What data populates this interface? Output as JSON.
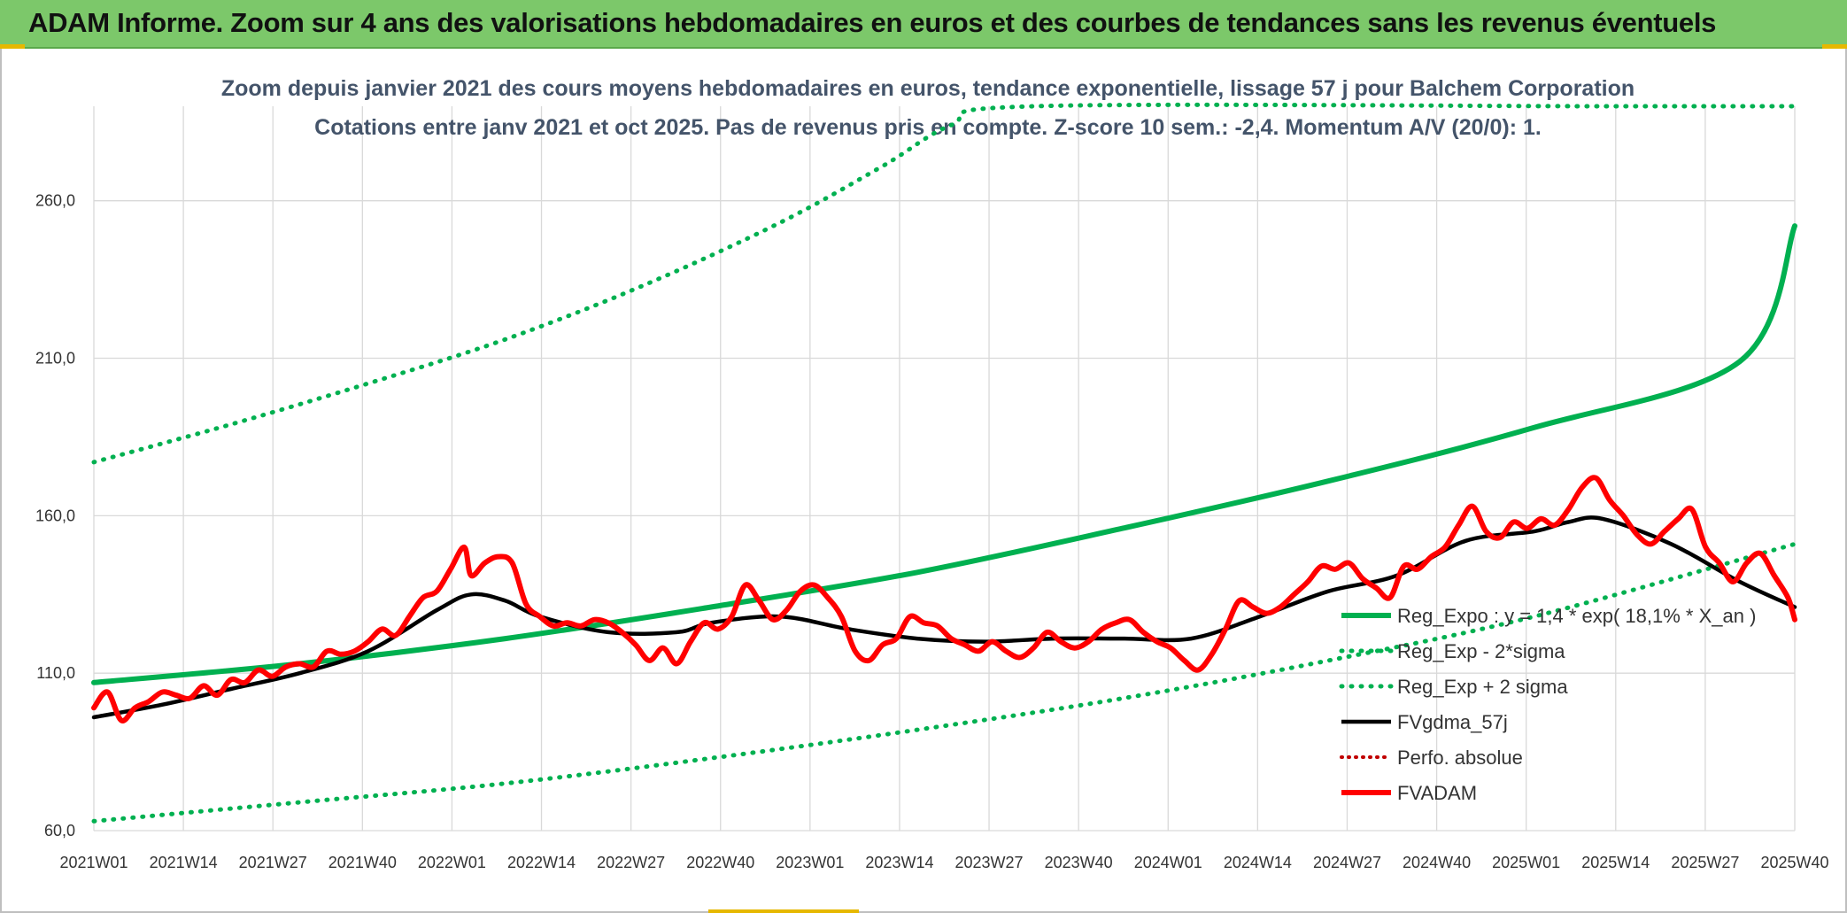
{
  "banner": {
    "title": "ADAM Informe. Zoom sur 4 ans des valorisations hebdomadaires en euros et des courbes de tendances sans les revenus éventuels"
  },
  "chart_data": {
    "type": "line",
    "title_line1": "Zoom depuis janvier 2021 des cours moyens hebdomadaires en euros, tendance exponentielle, lissage 57 j pour Balchem Corporation",
    "title_line2": "Cotations entre janv 2021 et oct 2025. Pas de revenus pris en compte. Z-score 10 sem.: -2,4. Momentum A/V (20/0): 1.",
    "ylim": [
      60,
      290
    ],
    "yticks": [
      60,
      110,
      160,
      210,
      260
    ],
    "ytick_labels": [
      "60,0",
      "110,0",
      "160,0",
      "210,0",
      "260,0"
    ],
    "n_weeks": 249,
    "xtick_labels": [
      "2021W01",
      "2021W14",
      "2021W27",
      "2021W40",
      "2022W01",
      "2022W14",
      "2022W27",
      "2022W40",
      "2023W01",
      "2023W14",
      "2023W27",
      "2023W40",
      "2024W01",
      "2024W14",
      "2024W27",
      "2024W40",
      "2025W01",
      "2025W14",
      "2025W27",
      "2025W40"
    ],
    "legend_position": "right",
    "colors": {
      "reg_expo": "#00b050",
      "band": "#00b050",
      "smooth": "#000000",
      "price": "#ff0000",
      "perfo": "#c00000",
      "grid": "#d9d9d9"
    },
    "series": [
      {
        "name": "Reg_Expo : y = 1,4 * exp( 18,1% * X_an )",
        "style": "solid-thick-green",
        "anchors": [
          [
            0,
            107
          ],
          [
            30,
            113
          ],
          [
            60,
            121
          ],
          [
            90,
            131
          ],
          [
            120,
            142
          ],
          [
            150,
            156
          ],
          [
            180,
            171
          ],
          [
            210,
            188
          ],
          [
            240,
            209
          ],
          [
            248,
            252
          ]
        ]
      },
      {
        "name": "Reg_Exp - 2*sigma",
        "style": "dotted-green",
        "anchors": [
          [
            0,
            63
          ],
          [
            30,
            69
          ],
          [
            60,
            75
          ],
          [
            90,
            83
          ],
          [
            120,
            92
          ],
          [
            150,
            102
          ],
          [
            180,
            114
          ],
          [
            210,
            128
          ],
          [
            248,
            151
          ]
        ]
      },
      {
        "name": "Reg_Exp + 2 sigma",
        "style": "dotted-green",
        "anchors": [
          [
            0,
            177
          ],
          [
            20,
            189
          ],
          [
            40,
            202
          ],
          [
            60,
            216
          ],
          [
            80,
            233
          ],
          [
            100,
            253
          ],
          [
            115,
            271
          ],
          [
            125,
            284
          ],
          [
            137,
            290
          ],
          [
            220,
            290
          ],
          [
            248,
            290
          ]
        ]
      },
      {
        "name": "FVgdma_57j",
        "style": "solid-black",
        "anchors": [
          [
            0,
            96
          ],
          [
            10,
            100
          ],
          [
            20,
            105
          ],
          [
            30,
            110
          ],
          [
            40,
            117
          ],
          [
            50,
            130
          ],
          [
            55,
            135
          ],
          [
            60,
            133
          ],
          [
            65,
            128
          ],
          [
            75,
            123
          ],
          [
            85,
            123
          ],
          [
            90,
            126
          ],
          [
            100,
            128
          ],
          [
            110,
            124
          ],
          [
            120,
            121
          ],
          [
            130,
            120
          ],
          [
            140,
            121
          ],
          [
            150,
            121
          ],
          [
            160,
            121
          ],
          [
            170,
            128
          ],
          [
            180,
            136
          ],
          [
            190,
            141
          ],
          [
            200,
            152
          ],
          [
            210,
            155
          ],
          [
            215,
            158
          ],
          [
            220,
            159
          ],
          [
            230,
            151
          ],
          [
            240,
            139
          ],
          [
            248,
            131
          ]
        ]
      },
      {
        "name": "Perfo. absolue",
        "style": "dotted-darkred",
        "anchors": []
      },
      {
        "name": "FVADAM",
        "style": "solid-thick-red",
        "anchors": [
          [
            0,
            99
          ],
          [
            2,
            104
          ],
          [
            4,
            95
          ],
          [
            6,
            99
          ],
          [
            8,
            101
          ],
          [
            10,
            104
          ],
          [
            12,
            103
          ],
          [
            14,
            102
          ],
          [
            16,
            106
          ],
          [
            18,
            103
          ],
          [
            20,
            108
          ],
          [
            22,
            107
          ],
          [
            24,
            111
          ],
          [
            26,
            109
          ],
          [
            28,
            112
          ],
          [
            30,
            113
          ],
          [
            32,
            112
          ],
          [
            34,
            117
          ],
          [
            36,
            116
          ],
          [
            38,
            117
          ],
          [
            40,
            120
          ],
          [
            42,
            124
          ],
          [
            44,
            122
          ],
          [
            46,
            128
          ],
          [
            48,
            134
          ],
          [
            50,
            136
          ],
          [
            52,
            143
          ],
          [
            54,
            150
          ],
          [
            55,
            141
          ],
          [
            57,
            145
          ],
          [
            59,
            147
          ],
          [
            61,
            145
          ],
          [
            63,
            132
          ],
          [
            65,
            128
          ],
          [
            67,
            125
          ],
          [
            69,
            126
          ],
          [
            71,
            125
          ],
          [
            73,
            127
          ],
          [
            75,
            126
          ],
          [
            77,
            123
          ],
          [
            79,
            119
          ],
          [
            81,
            114
          ],
          [
            83,
            118
          ],
          [
            85,
            113
          ],
          [
            87,
            120
          ],
          [
            89,
            126
          ],
          [
            91,
            124
          ],
          [
            93,
            128
          ],
          [
            95,
            138
          ],
          [
            97,
            133
          ],
          [
            99,
            127
          ],
          [
            101,
            130
          ],
          [
            103,
            136
          ],
          [
            105,
            138
          ],
          [
            107,
            134
          ],
          [
            109,
            128
          ],
          [
            111,
            117
          ],
          [
            113,
            114
          ],
          [
            115,
            119
          ],
          [
            117,
            121
          ],
          [
            119,
            128
          ],
          [
            121,
            126
          ],
          [
            123,
            125
          ],
          [
            125,
            121
          ],
          [
            127,
            119
          ],
          [
            129,
            117
          ],
          [
            131,
            120
          ],
          [
            133,
            117
          ],
          [
            135,
            115
          ],
          [
            137,
            118
          ],
          [
            139,
            123
          ],
          [
            141,
            120
          ],
          [
            143,
            118
          ],
          [
            145,
            120
          ],
          [
            147,
            124
          ],
          [
            149,
            126
          ],
          [
            151,
            127
          ],
          [
            153,
            123
          ],
          [
            155,
            120
          ],
          [
            157,
            118
          ],
          [
            159,
            114
          ],
          [
            161,
            111
          ],
          [
            163,
            116
          ],
          [
            165,
            124
          ],
          [
            167,
            133
          ],
          [
            169,
            131
          ],
          [
            171,
            129
          ],
          [
            173,
            131
          ],
          [
            175,
            135
          ],
          [
            177,
            139
          ],
          [
            179,
            144
          ],
          [
            181,
            143
          ],
          [
            183,
            145
          ],
          [
            185,
            140
          ],
          [
            187,
            137
          ],
          [
            189,
            134
          ],
          [
            191,
            144
          ],
          [
            193,
            143
          ],
          [
            195,
            147
          ],
          [
            197,
            150
          ],
          [
            199,
            157
          ],
          [
            201,
            163
          ],
          [
            203,
            155
          ],
          [
            205,
            153
          ],
          [
            207,
            158
          ],
          [
            209,
            156
          ],
          [
            211,
            159
          ],
          [
            213,
            157
          ],
          [
            215,
            162
          ],
          [
            217,
            169
          ],
          [
            219,
            172
          ],
          [
            221,
            165
          ],
          [
            223,
            160
          ],
          [
            225,
            154
          ],
          [
            227,
            151
          ],
          [
            229,
            155
          ],
          [
            231,
            159
          ],
          [
            233,
            162
          ],
          [
            235,
            150
          ],
          [
            237,
            145
          ],
          [
            239,
            139
          ],
          [
            241,
            145
          ],
          [
            243,
            148
          ],
          [
            245,
            141
          ],
          [
            247,
            134
          ],
          [
            248,
            127
          ]
        ]
      }
    ]
  }
}
